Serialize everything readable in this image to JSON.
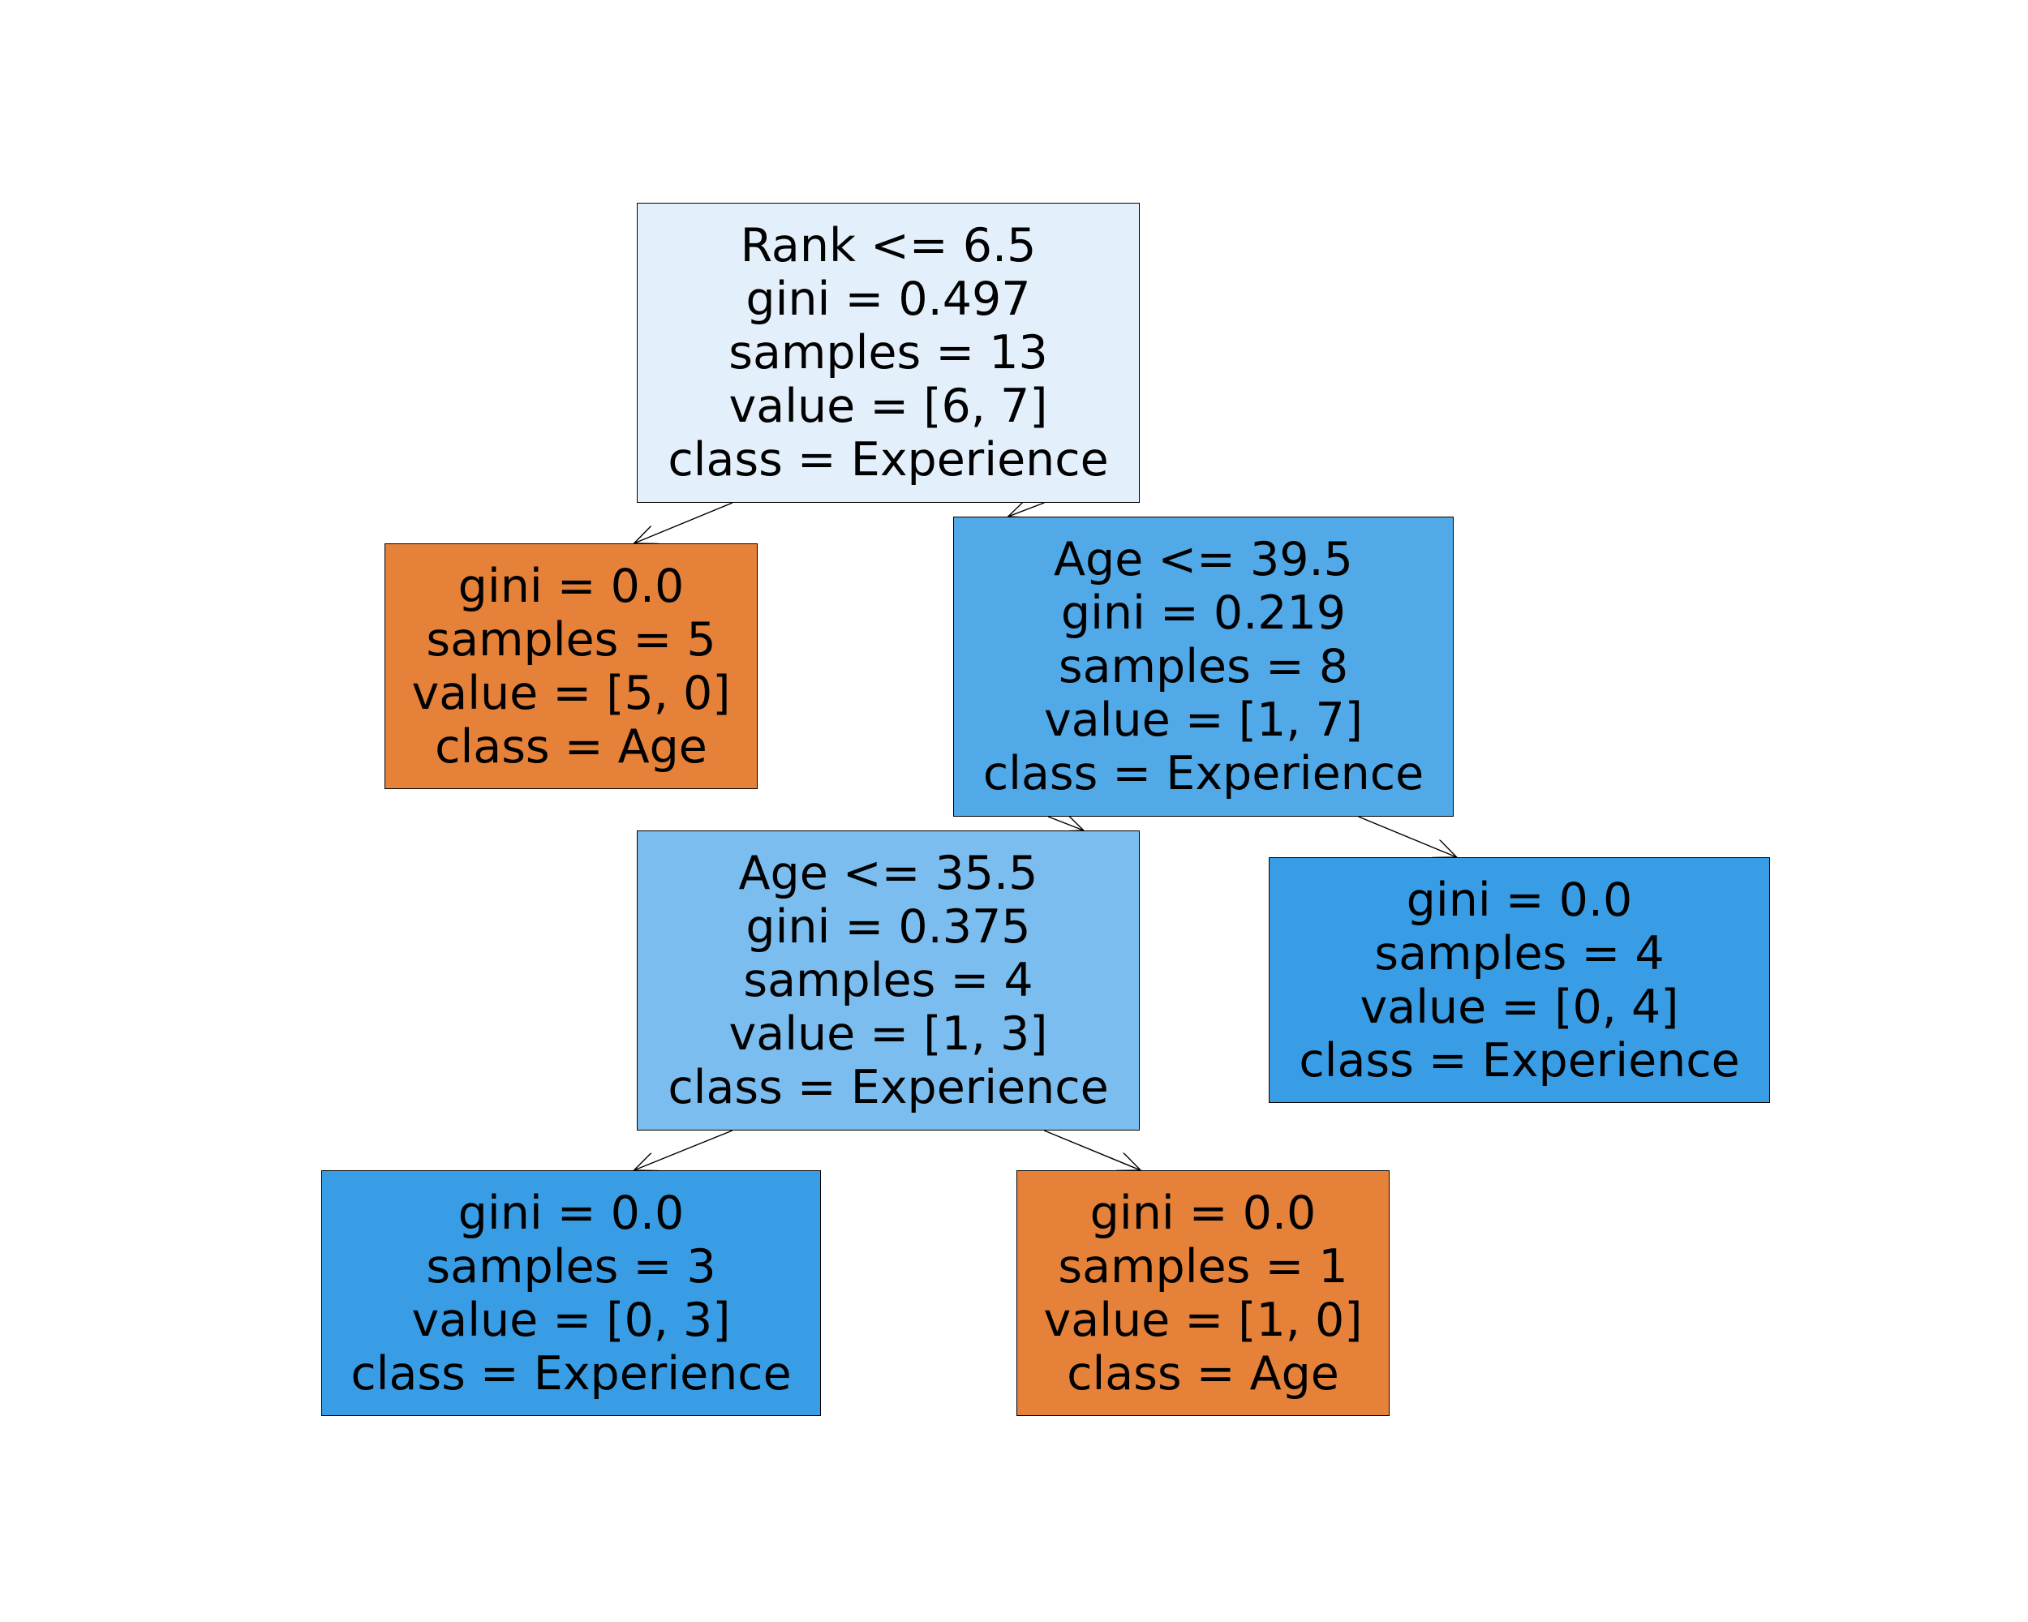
{
  "colors": {
    "class_age": "#e58139",
    "class_experience_strong": "#399de5",
    "class_experience_mid": "#52a9e8",
    "class_experience_light": "#7bbdee",
    "class_experience_pale": "#e3f0fb",
    "border": "#000000",
    "background": "#ffffff"
  },
  "nodes": [
    {
      "id": "root",
      "split": "Rank <= 6.5",
      "gini": "gini = 0.497",
      "samples": "samples = 13",
      "value": "value = [6, 7]",
      "class": "class = Experience",
      "fill": "#e3f0fb"
    },
    {
      "id": "leaf-rank-left",
      "split": "",
      "gini": "gini = 0.0",
      "samples": "samples = 5",
      "value": "value = [5, 0]",
      "class": "class = Age",
      "fill": "#e58139"
    },
    {
      "id": "age-39",
      "split": "Age <= 39.5",
      "gini": "gini = 0.219",
      "samples": "samples = 8",
      "value": "value = [1, 7]",
      "class": "class = Experience",
      "fill": "#52a9e8"
    },
    {
      "id": "age-35",
      "split": "Age <= 35.5",
      "gini": "gini = 0.375",
      "samples": "samples = 4",
      "value": "value = [1, 3]",
      "class": "class = Experience",
      "fill": "#7bbdee"
    },
    {
      "id": "leaf-age39-right",
      "split": "",
      "gini": "gini = 0.0",
      "samples": "samples = 4",
      "value": "value = [0, 4]",
      "class": "class = Experience",
      "fill": "#399de5"
    },
    {
      "id": "leaf-age35-left",
      "split": "",
      "gini": "gini = 0.0",
      "samples": "samples = 3",
      "value": "value = [0, 3]",
      "class": "class = Experience",
      "fill": "#399de5"
    },
    {
      "id": "leaf-age35-right",
      "split": "",
      "gini": "gini = 0.0",
      "samples": "samples = 1",
      "value": "value = [1, 0]",
      "class": "class = Age",
      "fill": "#e58139"
    }
  ],
  "edges": [
    {
      "from": "root",
      "to": "leaf-rank-left"
    },
    {
      "from": "root",
      "to": "age-39"
    },
    {
      "from": "age-39",
      "to": "age-35"
    },
    {
      "from": "age-39",
      "to": "leaf-age39-right"
    },
    {
      "from": "age-35",
      "to": "leaf-age35-left"
    },
    {
      "from": "age-35",
      "to": "leaf-age35-right"
    }
  ]
}
